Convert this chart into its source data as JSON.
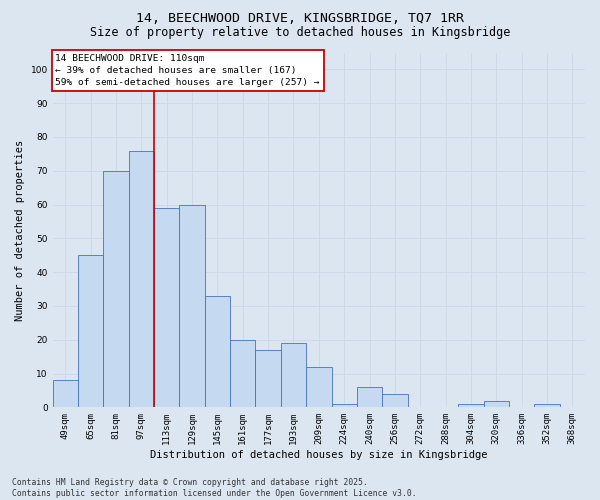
{
  "title_line1": "14, BEECHWOOD DRIVE, KINGSBRIDGE, TQ7 1RR",
  "title_line2": "Size of property relative to detached houses in Kingsbridge",
  "xlabel": "Distribution of detached houses by size in Kingsbridge",
  "ylabel": "Number of detached properties",
  "bar_labels": [
    "49sqm",
    "65sqm",
    "81sqm",
    "97sqm",
    "113sqm",
    "129sqm",
    "145sqm",
    "161sqm",
    "177sqm",
    "193sqm",
    "209sqm",
    "224sqm",
    "240sqm",
    "256sqm",
    "272sqm",
    "288sqm",
    "304sqm",
    "320sqm",
    "336sqm",
    "352sqm",
    "368sqm"
  ],
  "bar_values": [
    8,
    45,
    70,
    76,
    59,
    60,
    33,
    20,
    17,
    19,
    12,
    1,
    6,
    4,
    0,
    0,
    1,
    2,
    0,
    1,
    0
  ],
  "bar_color": "#c5d9f1",
  "bar_edge_color": "#4472c4",
  "grid_color": "#d0d8e8",
  "background_color": "#dce6f1",
  "vline_color": "#cc0000",
  "annotation_text": "14 BEECHWOOD DRIVE: 110sqm\n← 39% of detached houses are smaller (167)\n59% of semi-detached houses are larger (257) →",
  "annotation_box_color": "#ffffff",
  "annotation_box_edge": "#cc0000",
  "ylim": [
    0,
    105
  ],
  "yticks": [
    0,
    10,
    20,
    30,
    40,
    50,
    60,
    70,
    80,
    90,
    100
  ],
  "footer_text": "Contains HM Land Registry data © Crown copyright and database right 2025.\nContains public sector information licensed under the Open Government Licence v3.0.",
  "title_fontsize": 9.5,
  "subtitle_fontsize": 8.5,
  "axis_label_fontsize": 7.5,
  "tick_fontsize": 6.5,
  "annotation_fontsize": 6.8,
  "footer_fontsize": 5.8
}
